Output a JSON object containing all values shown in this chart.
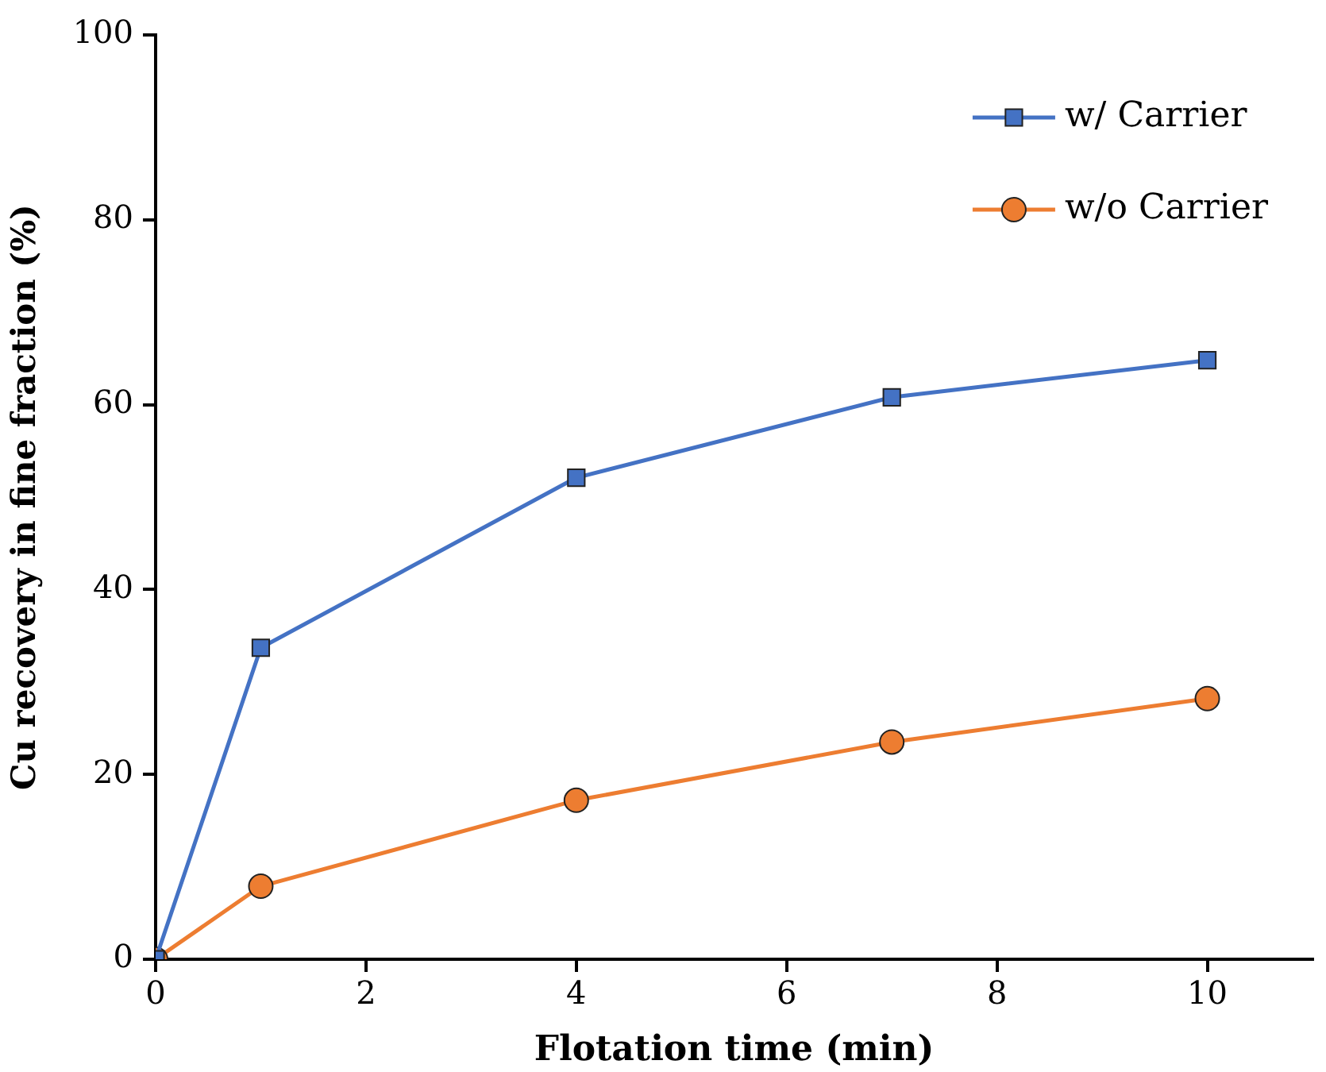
{
  "chart_data": {
    "type": "line",
    "xlabel": "Flotation time (min)",
    "ylabel": "Cu recovery in fine fraction (%)",
    "x": [
      0,
      1,
      4,
      7,
      10
    ],
    "series": [
      {
        "name": "w/ Carrier",
        "color": "#4472c4",
        "marker": "square",
        "values": [
          0,
          33.7,
          52.1,
          60.8,
          64.8
        ]
      },
      {
        "name": "w/o Carrier",
        "color": "#ed7d31",
        "marker": "circle",
        "values": [
          0,
          7.9,
          17.2,
          23.5,
          28.2
        ]
      }
    ],
    "xlim": [
      0,
      11
    ],
    "xticks": [
      0,
      2,
      4,
      6,
      8,
      10
    ],
    "ylim": [
      0,
      100
    ],
    "yticks": [
      0,
      20,
      40,
      60,
      80,
      100
    ],
    "grid": false,
    "legend": "top right",
    "line_style": "solid"
  }
}
